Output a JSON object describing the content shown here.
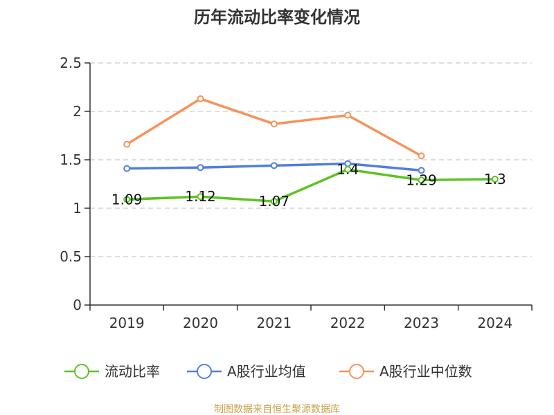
{
  "chart_data": {
    "type": "line",
    "title": "历年流动比率变化情况",
    "categories": [
      "2019",
      "2020",
      "2021",
      "2022",
      "2023",
      "2024"
    ],
    "ylim": [
      0,
      2.5
    ],
    "y_ticks": [
      "0",
      "0.5",
      "1",
      "1.5",
      "2",
      "2.5"
    ],
    "grid": true,
    "legend_position": "bottom",
    "series": [
      {
        "name": "流动比率",
        "color": "#5cc222",
        "values": [
          1.09,
          1.12,
          1.07,
          1.4,
          1.29,
          1.3
        ],
        "data_labels": [
          "1.09",
          "1.12",
          "1.07",
          "1.4",
          "1.29",
          "1.3"
        ]
      },
      {
        "name": "A股行业均值",
        "color": "#4f7fdc",
        "values": [
          1.41,
          1.42,
          1.44,
          1.46,
          1.39,
          null
        ]
      },
      {
        "name": "A股行业中位数",
        "color": "#f5935b",
        "values": [
          1.66,
          2.13,
          1.87,
          1.96,
          1.54,
          null
        ]
      }
    ]
  },
  "source_note": "制图数据来自恒生聚源数据库"
}
